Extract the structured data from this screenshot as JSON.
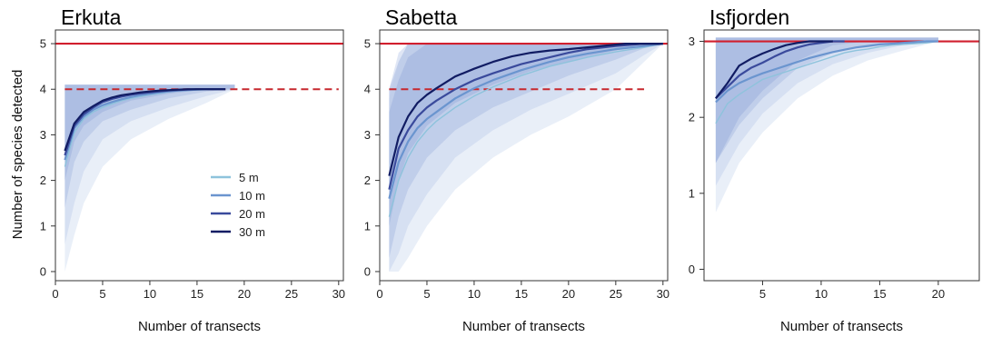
{
  "colors": {
    "s5": "#8ec3dc",
    "s10": "#6b95cf",
    "s20": "#3a4a9c",
    "s30": "#111c63",
    "band_outer": "#e2eaf6",
    "band_inner": "#9aaedc",
    "max_line": "#d11f2e",
    "obs_line": "#c7282e",
    "frame": "#333333"
  },
  "shared": {
    "ylabel": "Number of species detected",
    "xlabel": "Number of transects"
  },
  "legend": {
    "placement": "inside Erkuta panel, lower-right",
    "entries": [
      "5 m",
      "10 m",
      "20 m",
      "30 m"
    ]
  },
  "chart_data": [
    {
      "type": "line",
      "title": "Erkuta",
      "xlabel": "Number of transects",
      "ylabel": "Number of species detected",
      "xlim": [
        0,
        30.5
      ],
      "ylim": [
        -0.2,
        5.3
      ],
      "xticks": [
        0,
        5,
        10,
        15,
        20,
        25,
        30
      ],
      "yticks": [
        0,
        1,
        2,
        3,
        4,
        5
      ],
      "max_species": 5,
      "observed_species": 4,
      "observed_end": 30,
      "series": [
        {
          "name": "5 m",
          "color_key": "s5",
          "x": [
            1,
            2,
            3,
            4,
            5,
            6,
            7,
            8,
            9,
            10,
            11,
            12,
            13,
            14,
            15,
            16,
            17,
            18
          ],
          "values": [
            2.3,
            3.05,
            3.35,
            3.5,
            3.6,
            3.68,
            3.75,
            3.8,
            3.84,
            3.88,
            3.91,
            3.94,
            3.96,
            3.97,
            3.98,
            3.99,
            4.0,
            4.0
          ]
        },
        {
          "name": "10 m",
          "color_key": "s10",
          "x": [
            1,
            2,
            3,
            4,
            5,
            6,
            7,
            8,
            9,
            10,
            11,
            12,
            13,
            14,
            15,
            16,
            17,
            18
          ],
          "values": [
            2.45,
            3.15,
            3.4,
            3.55,
            3.65,
            3.72,
            3.78,
            3.83,
            3.87,
            3.9,
            3.93,
            3.95,
            3.97,
            3.98,
            3.99,
            4.0,
            4.0,
            4.0
          ]
        },
        {
          "name": "20 m",
          "color_key": "s20",
          "x": [
            1,
            2,
            3,
            4,
            5,
            6,
            7,
            8,
            9,
            10,
            11,
            12,
            13,
            14,
            15,
            16,
            17,
            18
          ],
          "values": [
            2.55,
            3.2,
            3.45,
            3.6,
            3.72,
            3.79,
            3.84,
            3.88,
            3.91,
            3.93,
            3.95,
            3.97,
            3.98,
            3.99,
            4.0,
            4.0,
            4.0,
            4.0
          ]
        },
        {
          "name": "30 m",
          "color_key": "s30",
          "x": [
            1,
            2,
            3,
            4,
            5,
            6,
            7,
            8,
            9,
            10,
            11,
            12,
            13,
            14,
            15,
            16,
            17,
            18
          ],
          "values": [
            2.65,
            3.25,
            3.5,
            3.63,
            3.75,
            3.82,
            3.87,
            3.9,
            3.93,
            3.95,
            3.97,
            3.98,
            3.99,
            4.0,
            4.0,
            4.0,
            4.0,
            4.0
          ]
        }
      ],
      "bands": [
        {
          "name": "5 m",
          "x": [
            1,
            2,
            3,
            5,
            8,
            12,
            16,
            19
          ],
          "lower": [
            0,
            0.8,
            1.5,
            2.3,
            2.9,
            3.35,
            3.7,
            4.0
          ],
          "upper": [
            4.1,
            4.1,
            4.1,
            4.1,
            4.1,
            4.1,
            4.1,
            4.1
          ]
        },
        {
          "name": "10 m",
          "x": [
            1,
            2,
            3,
            5,
            8,
            12,
            16,
            19
          ],
          "lower": [
            0.6,
            1.5,
            2.2,
            2.9,
            3.3,
            3.6,
            3.85,
            4.0
          ],
          "upper": [
            4.1,
            4.1,
            4.1,
            4.1,
            4.1,
            4.1,
            4.1,
            4.1
          ]
        },
        {
          "name": "20 m",
          "x": [
            1,
            2,
            3,
            5,
            8,
            12,
            16,
            19
          ],
          "lower": [
            1.4,
            2.4,
            2.85,
            3.3,
            3.55,
            3.8,
            3.95,
            4.0
          ],
          "upper": [
            4.1,
            4.1,
            4.1,
            4.1,
            4.1,
            4.1,
            4.1,
            4.1
          ]
        },
        {
          "name": "30 m",
          "x": [
            1,
            2,
            3,
            5,
            8,
            12,
            16,
            19
          ],
          "lower": [
            2.0,
            2.85,
            3.2,
            3.5,
            3.75,
            3.9,
            4.0,
            4.0
          ],
          "upper": [
            4.1,
            4.1,
            4.1,
            4.1,
            4.1,
            4.1,
            4.1,
            4.1
          ]
        }
      ]
    },
    {
      "type": "line",
      "title": "Sabetta",
      "xlabel": "Number of transects",
      "ylabel": "",
      "xlim": [
        0,
        30.5
      ],
      "ylim": [
        -0.2,
        5.3
      ],
      "xticks": [
        0,
        5,
        10,
        15,
        20,
        25,
        30
      ],
      "yticks": [
        0,
        1,
        2,
        3,
        4,
        5
      ],
      "max_species": 5,
      "observed_species": 4,
      "observed_end": 28,
      "series": [
        {
          "name": "5 m",
          "color_key": "s5",
          "x": [
            1,
            2,
            3,
            4,
            5,
            6,
            8,
            10,
            12,
            15,
            18,
            20,
            22,
            25,
            28,
            30
          ],
          "values": [
            1.2,
            2.0,
            2.5,
            2.85,
            3.1,
            3.3,
            3.6,
            3.85,
            4.05,
            4.3,
            4.5,
            4.6,
            4.7,
            4.82,
            4.92,
            5.0
          ]
        },
        {
          "name": "10 m",
          "color_key": "s10",
          "x": [
            1,
            2,
            3,
            4,
            5,
            6,
            8,
            10,
            12,
            15,
            18,
            20,
            22,
            25,
            28,
            30
          ],
          "values": [
            1.6,
            2.4,
            2.85,
            3.15,
            3.35,
            3.5,
            3.8,
            4.02,
            4.2,
            4.42,
            4.6,
            4.7,
            4.78,
            4.88,
            4.95,
            5.0
          ]
        },
        {
          "name": "20 m",
          "color_key": "s20",
          "x": [
            1,
            2,
            3,
            4,
            5,
            6,
            8,
            10,
            12,
            15,
            18,
            20,
            22,
            25,
            28,
            30
          ],
          "values": [
            1.8,
            2.7,
            3.1,
            3.4,
            3.6,
            3.75,
            4.0,
            4.2,
            4.35,
            4.55,
            4.7,
            4.8,
            4.88,
            4.95,
            5.0,
            5.0
          ]
        },
        {
          "name": "30 m",
          "color_key": "s30",
          "x": [
            1,
            2,
            3,
            4,
            5,
            6,
            8,
            10,
            12,
            14,
            16,
            18,
            20,
            22,
            24,
            26,
            28,
            30
          ],
          "values": [
            2.1,
            2.95,
            3.4,
            3.7,
            3.88,
            4.02,
            4.28,
            4.45,
            4.6,
            4.72,
            4.8,
            4.85,
            4.88,
            4.92,
            4.96,
            5.0,
            5.0,
            5.0
          ]
        }
      ],
      "bands": [
        {
          "name": "5 m",
          "x": [
            1,
            2,
            3,
            5,
            8,
            12,
            16,
            20,
            25,
            28,
            30
          ],
          "lower": [
            0,
            0,
            0.3,
            1.0,
            1.8,
            2.5,
            3.0,
            3.4,
            4.0,
            4.6,
            5.0
          ],
          "upper": [
            3.8,
            4.6,
            5.0,
            5.0,
            5.0,
            5.0,
            5.0,
            5.0,
            5.0,
            5.0,
            5.0
          ]
        },
        {
          "name": "10 m",
          "x": [
            1,
            2,
            3,
            5,
            8,
            12,
            16,
            20,
            25,
            28,
            30
          ],
          "lower": [
            0,
            0.4,
            1.0,
            1.7,
            2.5,
            3.1,
            3.55,
            3.9,
            4.35,
            4.75,
            5.0
          ],
          "upper": [
            4.0,
            4.8,
            5.0,
            5.0,
            5.0,
            5.0,
            5.0,
            5.0,
            5.0,
            5.0,
            5.0
          ]
        },
        {
          "name": "20 m",
          "x": [
            1,
            2,
            3,
            5,
            8,
            12,
            16,
            20,
            25,
            28,
            30
          ],
          "lower": [
            0.3,
            1.2,
            1.8,
            2.5,
            3.1,
            3.6,
            3.95,
            4.3,
            4.65,
            4.9,
            5.0
          ],
          "upper": [
            4.0,
            4.6,
            5.0,
            5.0,
            5.0,
            5.0,
            5.0,
            5.0,
            5.0,
            5.0,
            5.0
          ]
        },
        {
          "name": "30 m",
          "x": [
            1,
            2,
            3,
            5,
            8,
            12,
            16,
            20,
            25,
            28,
            30
          ],
          "lower": [
            1.0,
            2.0,
            2.6,
            3.2,
            3.7,
            4.1,
            4.4,
            4.6,
            4.85,
            5.0,
            5.0
          ],
          "upper": [
            3.5,
            4.2,
            4.7,
            5.0,
            5.0,
            5.0,
            5.0,
            5.0,
            5.0,
            5.0,
            5.0
          ]
        }
      ]
    },
    {
      "type": "line",
      "title": "Isfjorden",
      "xlabel": "Number of transects",
      "ylabel": "",
      "xlim": [
        0,
        23.5
      ],
      "ylim": [
        -0.15,
        3.15
      ],
      "xticks": [
        5,
        10,
        15,
        20
      ],
      "yticks": [
        0,
        1,
        2,
        3
      ],
      "max_species": 3,
      "observed_species": null,
      "series": [
        {
          "name": "5 m",
          "color_key": "s5",
          "x": [
            1,
            2,
            3,
            4,
            5,
            6,
            7,
            8,
            9,
            10,
            11,
            12,
            13,
            14,
            15,
            16,
            17,
            18,
            19,
            20
          ],
          "values": [
            1.92,
            2.18,
            2.3,
            2.4,
            2.5,
            2.55,
            2.6,
            2.65,
            2.7,
            2.75,
            2.8,
            2.85,
            2.88,
            2.9,
            2.93,
            2.95,
            2.96,
            2.97,
            2.98,
            3.0
          ]
        },
        {
          "name": "10 m",
          "color_key": "s10",
          "x": [
            1,
            2,
            3,
            4,
            5,
            6,
            7,
            8,
            9,
            10,
            11,
            12,
            13,
            14,
            15,
            16,
            17,
            18,
            19,
            20
          ],
          "values": [
            2.2,
            2.35,
            2.45,
            2.52,
            2.58,
            2.63,
            2.68,
            2.73,
            2.78,
            2.82,
            2.86,
            2.89,
            2.92,
            2.94,
            2.96,
            2.97,
            2.98,
            2.99,
            3.0,
            3.0
          ]
        },
        {
          "name": "20 m",
          "color_key": "s20",
          "x": [
            1,
            2,
            3,
            4,
            5,
            6,
            7,
            8,
            9,
            10,
            11,
            12
          ],
          "values": [
            2.25,
            2.4,
            2.55,
            2.65,
            2.72,
            2.8,
            2.87,
            2.92,
            2.96,
            2.98,
            3.0,
            3.0
          ]
        },
        {
          "name": "30 m",
          "color_key": "s30",
          "x": [
            1,
            2,
            3,
            4,
            5,
            6,
            7,
            8,
            9,
            10,
            11
          ],
          "values": [
            2.25,
            2.45,
            2.68,
            2.77,
            2.84,
            2.9,
            2.95,
            2.98,
            3.0,
            3.0,
            3.0
          ]
        }
      ],
      "bands": [
        {
          "name": "5 m",
          "x": [
            1,
            3,
            5,
            8,
            11,
            14,
            17,
            20
          ],
          "lower": [
            0.75,
            1.4,
            1.8,
            2.25,
            2.55,
            2.75,
            2.88,
            3.0
          ],
          "upper": [
            3.05,
            3.05,
            3.05,
            3.05,
            3.05,
            3.05,
            3.05,
            3.05
          ]
        },
        {
          "name": "10 m",
          "x": [
            1,
            3,
            5,
            8,
            11,
            14,
            17,
            20
          ],
          "lower": [
            1.1,
            1.65,
            2.05,
            2.45,
            2.7,
            2.85,
            2.95,
            3.0
          ],
          "upper": [
            3.05,
            3.05,
            3.05,
            3.05,
            3.05,
            3.05,
            3.05,
            3.05
          ]
        },
        {
          "name": "20 m",
          "x": [
            1,
            3,
            5,
            8,
            11,
            14,
            17,
            20
          ],
          "lower": [
            1.4,
            1.9,
            2.25,
            2.65,
            2.85,
            2.95,
            3.0,
            3.0
          ],
          "upper": [
            3.05,
            3.05,
            3.05,
            3.05,
            3.05,
            3.05,
            3.05,
            3.05
          ]
        },
        {
          "name": "30 m",
          "x": [
            1,
            3,
            5,
            8,
            11,
            14,
            17,
            20
          ],
          "lower": [
            1.4,
            2.0,
            2.35,
            2.75,
            2.95,
            3.0,
            3.0,
            3.0
          ],
          "upper": [
            3.05,
            3.05,
            3.05,
            3.05,
            3.05,
            3.05,
            3.05,
            3.05
          ]
        }
      ]
    }
  ]
}
